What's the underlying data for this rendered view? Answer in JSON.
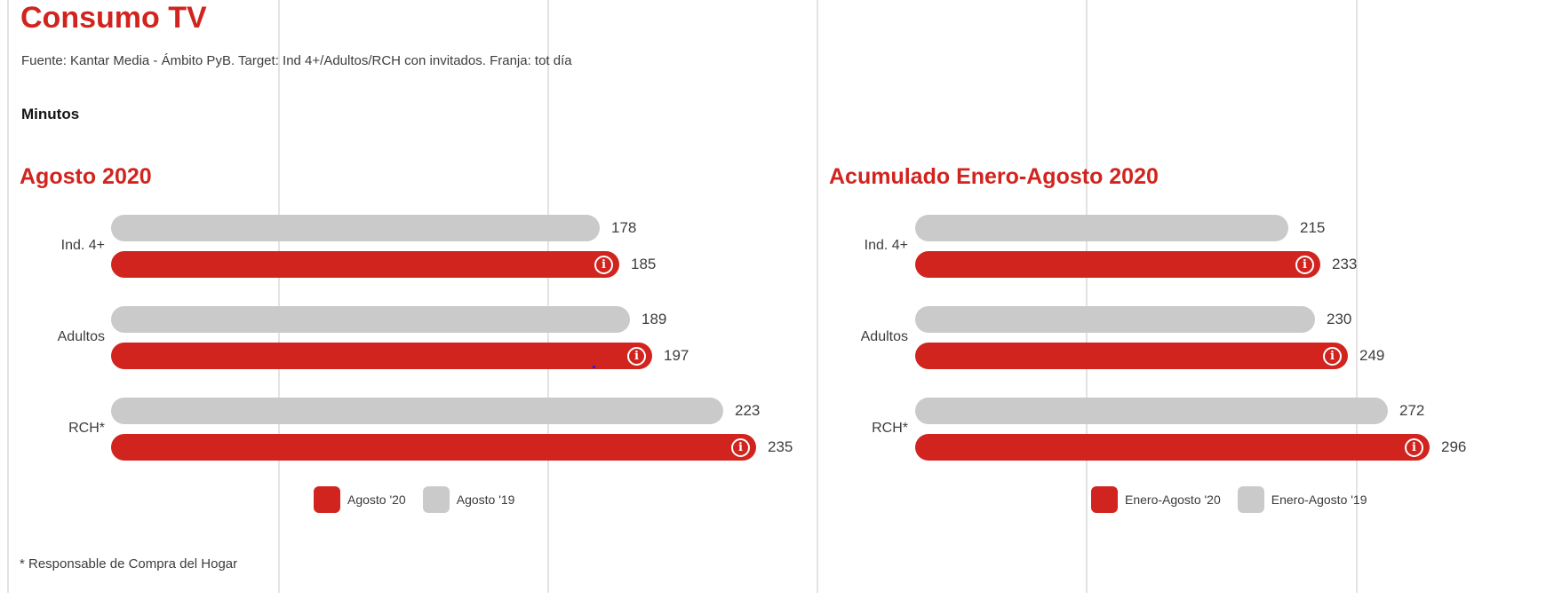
{
  "header": {
    "title": "Consumo TV",
    "subtitle": "Fuente: Kantar Media - Ámbito PyB. Target: Ind 4+/Adultos/RCH con invitados. Franja: tot día",
    "units_label": "Minutos"
  },
  "footnote": "* Responsable de Compra del Hogar",
  "colors": {
    "accent_red": "#d2241f",
    "bar_gray": "#cacaca",
    "grid_line": "#e3e3e3",
    "text_dark": "#3d3d3d"
  },
  "icons": {
    "info_glyph": "i"
  },
  "chart_data": [
    {
      "type": "bar",
      "orientation": "horizontal",
      "title": "Agosto 2020",
      "unit": "minutos",
      "categories": [
        "Ind. 4+",
        "Adultos",
        "RCH*"
      ],
      "series": [
        {
          "name": "Agosto '20",
          "color": "#d2241f",
          "values": [
            185,
            197,
            235
          ],
          "has_info_icon": true
        },
        {
          "name": "Agosto '19",
          "color": "#cacaca",
          "values": [
            178,
            189,
            223
          ],
          "has_info_icon": false
        }
      ],
      "legend_position": "bottom",
      "grid": "vertical-light",
      "value_labels": "outside-end"
    },
    {
      "type": "bar",
      "orientation": "horizontal",
      "title": "Acumulado Enero-Agosto 2020",
      "unit": "minutos",
      "categories": [
        "Ind. 4+",
        "Adultos",
        "RCH*"
      ],
      "series": [
        {
          "name": "Enero-Agosto '20",
          "color": "#d2241f",
          "values": [
            233,
            249,
            296
          ],
          "has_info_icon": true
        },
        {
          "name": "Enero-Agosto '19",
          "color": "#cacaca",
          "values": [
            215,
            230,
            272
          ],
          "has_info_icon": false
        }
      ],
      "legend_position": "bottom",
      "grid": "vertical-light",
      "value_labels": "outside-end"
    }
  ]
}
